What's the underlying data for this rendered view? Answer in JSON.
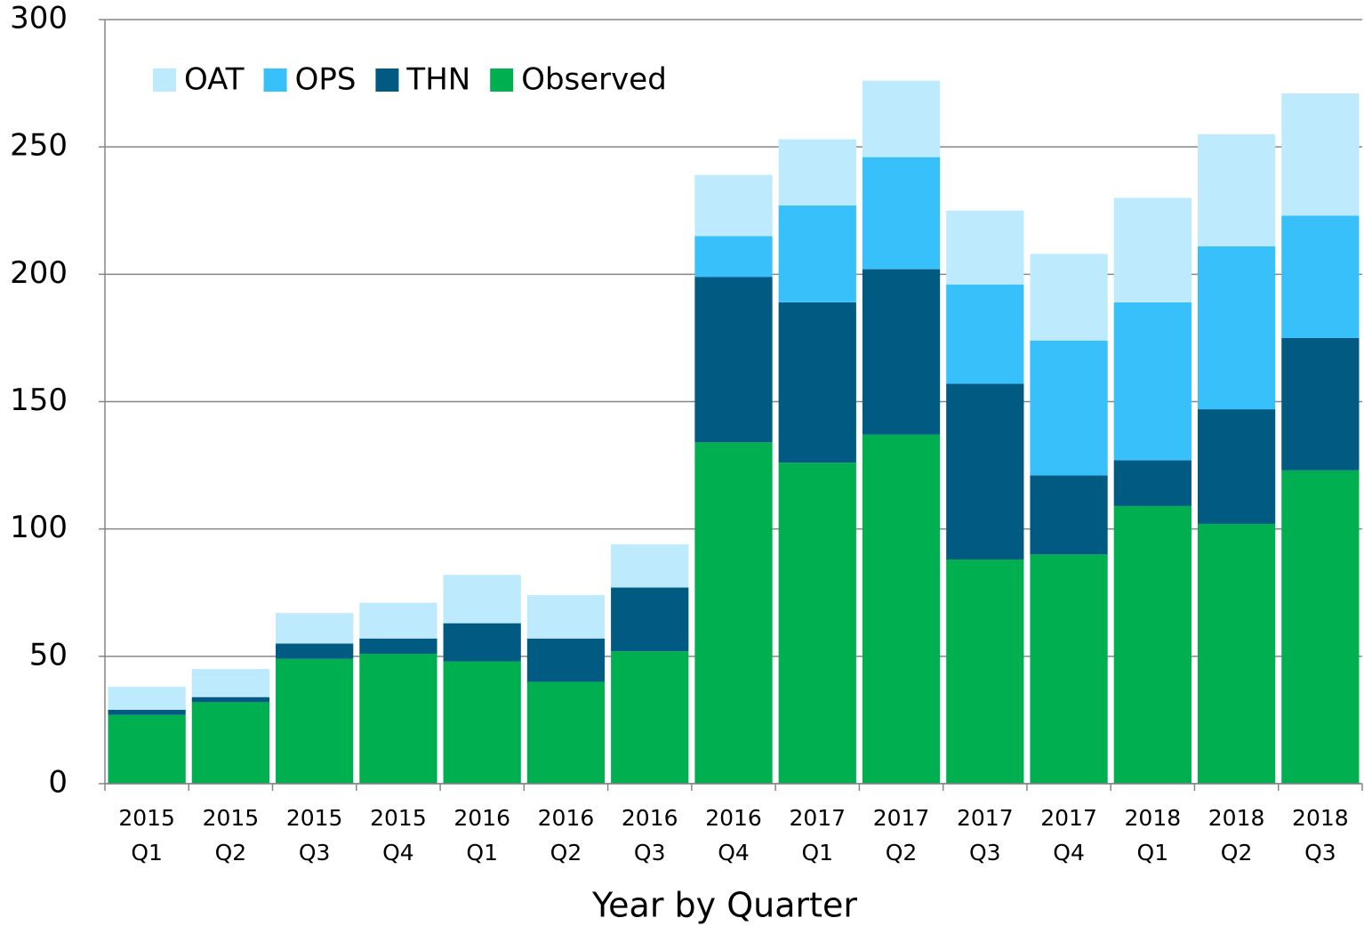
{
  "chart_data": {
    "type": "stacked-bar",
    "xlabel": "Year by Quarter",
    "categories": [
      [
        "2015",
        "Q1"
      ],
      [
        "2015",
        "Q2"
      ],
      [
        "2015",
        "Q3"
      ],
      [
        "2015",
        "Q4"
      ],
      [
        "2016",
        "Q1"
      ],
      [
        "2016",
        "Q2"
      ],
      [
        "2016",
        "Q3"
      ],
      [
        "2016",
        "Q4"
      ],
      [
        "2017",
        "Q1"
      ],
      [
        "2017",
        "Q2"
      ],
      [
        "2017",
        "Q3"
      ],
      [
        "2017",
        "Q4"
      ],
      [
        "2018",
        "Q1"
      ],
      [
        "2018",
        "Q2"
      ],
      [
        "2018",
        "Q3"
      ]
    ],
    "series": [
      {
        "name": "Observed",
        "color": "#00b050",
        "values": [
          27,
          32,
          49,
          51,
          48,
          40,
          52,
          134,
          126,
          137,
          88,
          90,
          109,
          102,
          123
        ]
      },
      {
        "name": "THN",
        "color": "#005a82",
        "values": [
          2,
          2,
          6,
          6,
          15,
          17,
          25,
          65,
          63,
          65,
          69,
          31,
          18,
          45,
          52
        ]
      },
      {
        "name": "OPS",
        "color": "#38c0fb",
        "values": [
          0,
          0,
          0,
          0,
          0,
          0,
          0,
          16,
          38,
          44,
          39,
          53,
          62,
          64,
          48
        ]
      },
      {
        "name": "OAT",
        "color": "#bdeafc",
        "values": [
          9,
          11,
          12,
          14,
          19,
          17,
          17,
          24,
          26,
          30,
          29,
          34,
          41,
          44,
          48
        ]
      }
    ],
    "legend_order": [
      "OAT",
      "OPS",
      "THN",
      "Observed"
    ],
    "legend": "upper left",
    "ylim": [
      0,
      300
    ],
    "yticks": [
      0,
      50,
      100,
      150,
      200,
      250,
      300
    ],
    "grid": true
  }
}
